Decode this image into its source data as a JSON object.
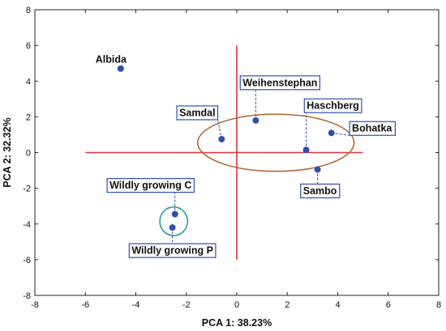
{
  "chart_data": {
    "type": "scatter",
    "title": "",
    "xlabel": "PCA 1: 38.23%",
    "ylabel": "PCA 2: 32.32%",
    "xlim": [
      -8,
      8
    ],
    "ylim": [
      -8,
      8
    ],
    "xticks": [
      -8,
      -6,
      -4,
      -2,
      0,
      2,
      4,
      6,
      8
    ],
    "yticks": [
      -8,
      -6,
      -4,
      -2,
      0,
      2,
      4,
      6,
      8
    ],
    "grid": false,
    "points": [
      {
        "label": "Albida",
        "x": -4.6,
        "y": 4.7,
        "boxed": false
      },
      {
        "label": "Samdal",
        "x": -0.6,
        "y": 0.75,
        "boxed": true
      },
      {
        "label": "Weihenstephan",
        "x": 0.75,
        "y": 1.8,
        "boxed": true
      },
      {
        "label": "Haschberg",
        "x": 2.75,
        "y": 0.15,
        "boxed": true
      },
      {
        "label": "Bohatka",
        "x": 3.75,
        "y": 1.1,
        "boxed": true
      },
      {
        "label": "Sambo",
        "x": 3.2,
        "y": -0.95,
        "boxed": true
      },
      {
        "label": "Wildly growing C",
        "x": -2.45,
        "y": -3.45,
        "boxed": true
      },
      {
        "label": "Wildly growing P",
        "x": -2.55,
        "y": -4.2,
        "boxed": true
      }
    ],
    "reference_lines": {
      "horizontal": {
        "y": 0,
        "x_from": -6,
        "x_to": 5
      },
      "vertical": {
        "x": 0,
        "y_from": -6,
        "y_to": 6
      }
    },
    "ellipses": [
      {
        "cx": 1.55,
        "cy": 0.55,
        "rx": 3.1,
        "ry": 1.6,
        "color": "#b5622e"
      },
      {
        "cx": -2.5,
        "cy": -3.85,
        "rx": 0.55,
        "ry": 0.8,
        "color": "#1a9a8a"
      }
    ],
    "colors": {
      "point": "#2f4fb0",
      "reference_line": "#e0343a",
      "label_border": "#2f4fb0",
      "leader_line": "#2f4fb0"
    }
  }
}
